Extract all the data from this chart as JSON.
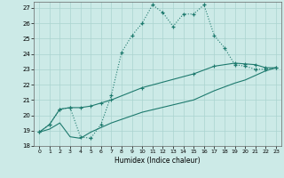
{
  "xlabel": "Humidex (Indice chaleur)",
  "xlim": [
    -0.5,
    23.5
  ],
  "ylim": [
    18,
    27.4
  ],
  "xticks": [
    0,
    1,
    2,
    3,
    4,
    5,
    6,
    7,
    8,
    9,
    10,
    11,
    12,
    13,
    14,
    15,
    16,
    17,
    18,
    19,
    20,
    21,
    22,
    23
  ],
  "yticks": [
    18,
    19,
    20,
    21,
    22,
    23,
    24,
    25,
    26,
    27
  ],
  "bg_color": "#cceae7",
  "grid_color": "#aad4d0",
  "line_color": "#1e7a6e",
  "line1_x": [
    0,
    1,
    2,
    3,
    4,
    5,
    6,
    7,
    8,
    9,
    10,
    11,
    12,
    13,
    14,
    15,
    16,
    17,
    18,
    19,
    20,
    21,
    22,
    23
  ],
  "line1_y": [
    18.9,
    19.4,
    20.4,
    20.5,
    18.6,
    18.5,
    19.4,
    21.3,
    24.1,
    25.2,
    26.0,
    27.2,
    26.7,
    25.8,
    26.6,
    26.6,
    27.2,
    25.2,
    24.4,
    23.3,
    23.2,
    23.0,
    23.0,
    23.1
  ],
  "line2_x": [
    0,
    1,
    2,
    3,
    4,
    5,
    6,
    7,
    10,
    15,
    17,
    19,
    20,
    21,
    22,
    23
  ],
  "line2_y": [
    18.9,
    19.4,
    20.4,
    20.5,
    20.5,
    20.6,
    20.8,
    21.0,
    21.8,
    22.7,
    23.2,
    23.4,
    23.35,
    23.3,
    23.1,
    23.1
  ],
  "line3_x": [
    0,
    1,
    2,
    3,
    4,
    5,
    6,
    7,
    10,
    15,
    17,
    19,
    20,
    21,
    22,
    23
  ],
  "line3_y": [
    18.9,
    19.1,
    19.5,
    18.6,
    18.5,
    18.9,
    19.2,
    19.5,
    20.2,
    21.0,
    21.6,
    22.1,
    22.3,
    22.6,
    22.9,
    23.1
  ]
}
